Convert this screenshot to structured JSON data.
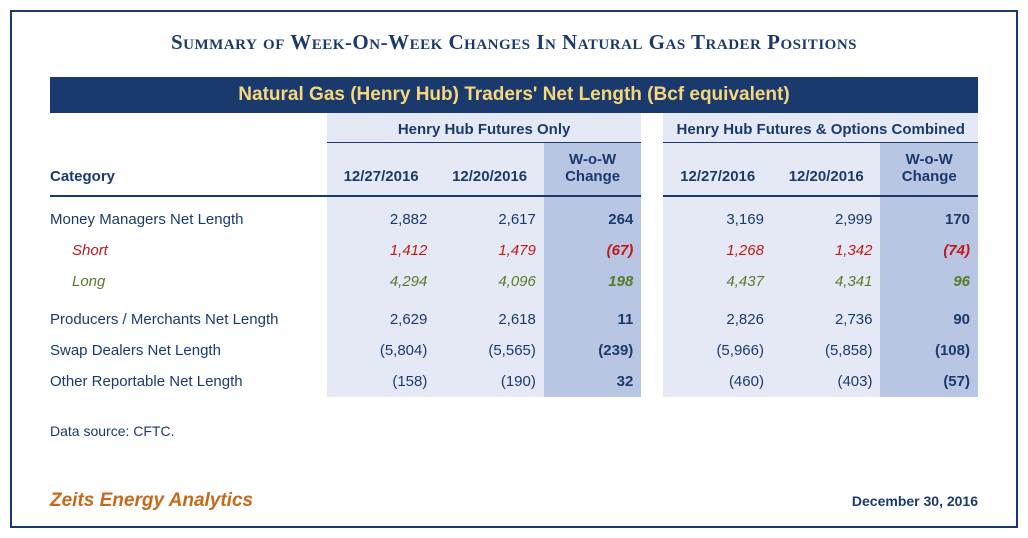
{
  "title": "Summary of Week-On-Week Changes In Natural Gas Trader Positions",
  "banner": "Natural Gas (Henry Hub) Traders' Net Length (Bcf equivalent)",
  "group_headers": {
    "left": "Henry Hub Futures Only",
    "right": "Henry Hub Futures & Options Combined"
  },
  "col_headers": {
    "category": "Category",
    "date1": "12/27/2016",
    "date2": "12/20/2016",
    "wow": "W-o-W Change"
  },
  "rows": [
    {
      "cat": "Money Managers Net Length",
      "type": "normal",
      "toprow": true,
      "l1": "2,882",
      "l2": "2,617",
      "lw": "264",
      "r1": "3,169",
      "r2": "2,999",
      "rw": "170"
    },
    {
      "cat": "Short",
      "type": "short",
      "indent": true,
      "l1": "1,412",
      "l2": "1,479",
      "lw": "(67)",
      "r1": "1,268",
      "r2": "1,342",
      "rw": "(74)"
    },
    {
      "cat": "Long",
      "type": "long",
      "indent": true,
      "l1": "4,294",
      "l2": "4,096",
      "lw": "198",
      "r1": "4,437",
      "r2": "4,341",
      "rw": "96"
    },
    {
      "cat": "Producers / Merchants Net Length",
      "type": "normal",
      "gap": true,
      "l1": "2,629",
      "l2": "2,618",
      "lw": "11",
      "r1": "2,826",
      "r2": "2,736",
      "rw": "90"
    },
    {
      "cat": "Swap Dealers Net Length",
      "type": "normal",
      "l1": "(5,804)",
      "l2": "(5,565)",
      "lw": "(239)",
      "r1": "(5,966)",
      "r2": "(5,858)",
      "rw": "(108)"
    },
    {
      "cat": "Other Reportable Net Length",
      "type": "normal",
      "l1": "(158)",
      "l2": "(190)",
      "lw": "32",
      "r1": "(460)",
      "r2": "(403)",
      "rw": "(57)"
    }
  ],
  "source": "Data source: CFTC.",
  "brand": "Zeits Energy Analytics",
  "date": "December 30, 2016",
  "colors": {
    "frame_border": "#1a3a6e",
    "banner_bg": "#1a3a6e",
    "banner_text": "#f7d77a",
    "text_primary": "#1a3a6e",
    "short": "#c21818",
    "long": "#5a7a2a",
    "bg_light": "#e4e9f5",
    "bg_wow": "#b9c6e3",
    "brand": "#c56a1a"
  }
}
